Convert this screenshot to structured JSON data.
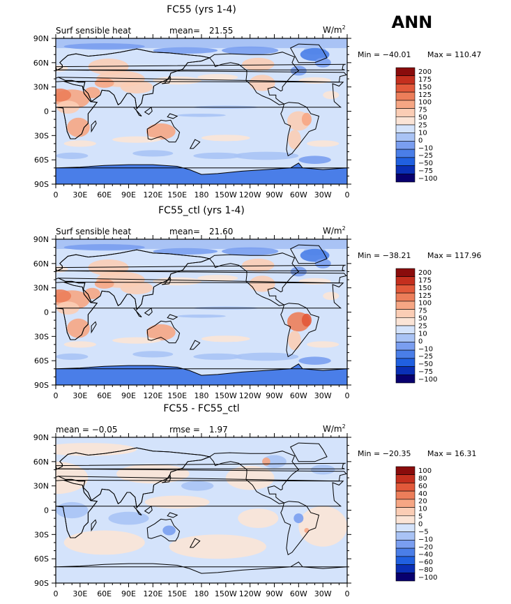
{
  "season": "ANN",
  "lat_ticks": [
    "90N",
    "60N",
    "30N",
    "0",
    "30S",
    "60S",
    "90S"
  ],
  "lon_ticks": [
    "0",
    "30E",
    "60E",
    "90E",
    "120E",
    "150E",
    "180",
    "150W",
    "120W",
    "90W",
    "60W",
    "30W",
    "0"
  ],
  "units_base": "W/m",
  "units_exp": "2",
  "palette_abs": [
    "#08006e",
    "#0a2fb5",
    "#2060e0",
    "#4a7ee8",
    "#7a9ef0",
    "#a9c3f5",
    "#d4e3fb",
    "#fbe4d6",
    "#fbcdb5",
    "#f6a684",
    "#ec7e5a",
    "#e2593a",
    "#c42f1e",
    "#8a0c0c"
  ],
  "palette_diff": [
    "#08006e",
    "#0a2fb5",
    "#2060e0",
    "#4a7ee8",
    "#7a9ef0",
    "#a9c3f5",
    "#d4e3fb",
    "#fbe4d6",
    "#fbcdb5",
    "#f6a684",
    "#ec7e5a",
    "#e2593a",
    "#c42f1e",
    "#8a0c0c"
  ],
  "panels": [
    {
      "title": "FC55 (yrs 1-4)",
      "left_label": "Surf sensible heat",
      "stat_label": "mean=",
      "stat_value": "21.55",
      "min_text": "Min = −40.01",
      "max_text": "Max = 110.47",
      "levels": [
        "200",
        "175",
        "150",
        "125",
        "100",
        "75",
        "50",
        "25",
        "10",
        "0",
        "−10",
        "−25",
        "−50",
        "−75",
        "−100"
      ],
      "kind": "abs"
    },
    {
      "title": "FC55_ctl (yrs 1-4)",
      "left_label": "Surf sensible heat",
      "stat_label": "mean=",
      "stat_value": "21.60",
      "min_text": "Min = −38.21",
      "max_text": "Max = 117.96",
      "levels": [
        "200",
        "175",
        "150",
        "125",
        "100",
        "75",
        "50",
        "25",
        "10",
        "0",
        "−10",
        "−25",
        "−50",
        "−75",
        "−100"
      ],
      "kind": "abs"
    },
    {
      "title": "FC55 - FC55_ctl",
      "left_label": "mean =   −0.05",
      "stat_label": "rmse =",
      "stat_value": "1.97",
      "min_text": "Min = −20.35",
      "max_text": "Max =  16.31",
      "levels": [
        "100",
        "80",
        "60",
        "40",
        "20",
        "10",
        "5",
        "0",
        "−5",
        "−10",
        "−20",
        "−40",
        "−60",
        "−80",
        "−100"
      ],
      "kind": "diff"
    }
  ]
}
